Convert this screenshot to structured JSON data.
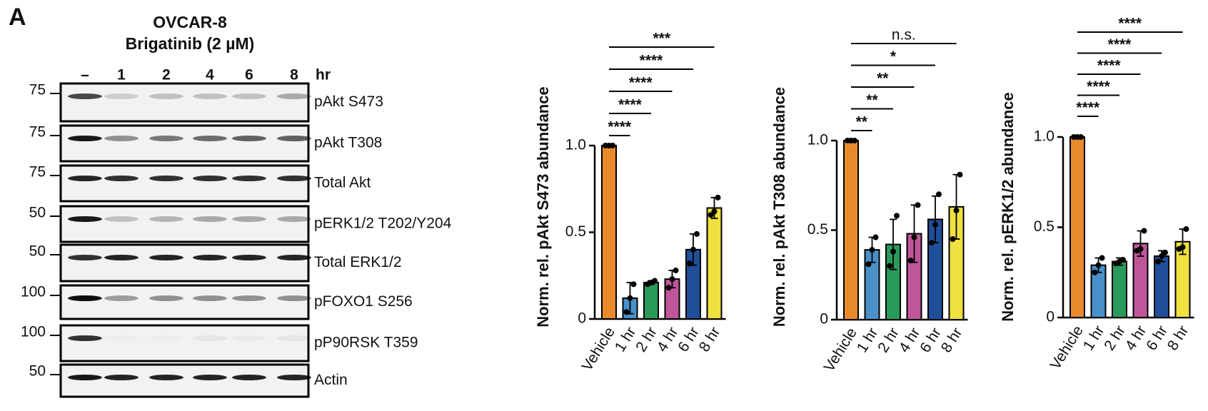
{
  "panel_label": "A",
  "blot": {
    "title": [
      "OVCAR-8",
      "Brigatinib (2 µM)"
    ],
    "lanes": [
      "–",
      "1",
      "2",
      "4",
      "6",
      "8"
    ],
    "lane_unit": "hr",
    "rows": [
      {
        "mw": "75",
        "label": "pAkt S473",
        "bands": [
          0.7,
          0.15,
          0.2,
          0.2,
          0.2,
          0.3
        ]
      },
      {
        "mw": "75",
        "label": "pAkt T308",
        "bands": [
          0.9,
          0.4,
          0.5,
          0.55,
          0.6,
          0.6
        ]
      },
      {
        "mw": "75",
        "label": "Total Akt",
        "bands": [
          0.85,
          0.8,
          0.8,
          0.8,
          0.8,
          0.8
        ]
      },
      {
        "mw": "50",
        "label": "pERK1/2 T202/Y204",
        "bands": [
          0.9,
          0.2,
          0.25,
          0.3,
          0.3,
          0.3
        ]
      },
      {
        "mw": "50",
        "label": "Total ERK1/2",
        "bands": [
          0.8,
          0.85,
          0.85,
          0.85,
          0.85,
          0.85
        ]
      },
      {
        "mw": "100",
        "label": "pFOXO1 S256",
        "bands": [
          0.95,
          0.35,
          0.4,
          0.4,
          0.4,
          0.4
        ]
      },
      {
        "mw": "100",
        "label": "pP90RSK T359",
        "bands": [
          0.8,
          0.02,
          0.02,
          0.05,
          0.03,
          0.05
        ]
      },
      {
        "mw": "50",
        "label": "Actin",
        "bands": [
          0.9,
          0.85,
          0.85,
          0.85,
          0.85,
          0.85
        ]
      }
    ]
  },
  "chart_data": [
    {
      "type": "bar",
      "ylabel": "Norm. rel. pAkt S473 abundance",
      "categories": [
        "Vehicle",
        "1 hr",
        "2 hr",
        "4 hr",
        "6 hr",
        "8 hr"
      ],
      "colors": [
        "#e8892b",
        "#4a90c8",
        "#2a9a5a",
        "#c0569a",
        "#1f4f99",
        "#f0e040"
      ],
      "values": [
        1,
        0.12,
        0.21,
        0.23,
        0.4,
        0.64
      ],
      "errors": [
        0,
        0.09,
        0.01,
        0.05,
        0.09,
        0.06
      ],
      "points": [
        [
          1,
          1,
          1
        ],
        [
          0.04,
          0.12,
          0.2
        ],
        [
          0.2,
          0.21,
          0.22
        ],
        [
          0.18,
          0.23,
          0.28
        ],
        [
          0.32,
          0.4,
          0.49
        ],
        [
          0.6,
          0.62,
          0.7
        ]
      ],
      "ylim": [
        0,
        1
      ],
      "yticks": [
        0,
        0.5,
        {
          "value": 1,
          "label": "1.0"
        }
      ],
      "significance": [
        {
          "label": "****",
          "from": 0,
          "to": 1
        },
        {
          "label": "****",
          "from": 0,
          "to": 2
        },
        {
          "label": "****",
          "from": 0,
          "to": 3
        },
        {
          "label": "****",
          "from": 0,
          "to": 4
        },
        {
          "label": "***",
          "from": 0,
          "to": 5
        }
      ]
    },
    {
      "type": "bar",
      "ylabel": "Norm. rel. pAkt  T308 abundance",
      "categories": [
        "Vehicle",
        "1 hr",
        "2 hr",
        "4 hr",
        "6 hr",
        "8 hr"
      ],
      "colors": [
        "#e8892b",
        "#4a90c8",
        "#2a9a5a",
        "#c0569a",
        "#1f4f99",
        "#f0e040"
      ],
      "values": [
        1,
        0.39,
        0.42,
        0.48,
        0.56,
        0.63
      ],
      "errors": [
        0,
        0.07,
        0.14,
        0.16,
        0.13,
        0.18
      ],
      "points": [
        [
          1,
          1,
          1
        ],
        [
          0.31,
          0.39,
          0.46
        ],
        [
          0.3,
          0.38,
          0.58
        ],
        [
          0.33,
          0.46,
          0.64
        ],
        [
          0.43,
          0.53,
          0.7
        ],
        [
          0.45,
          0.61,
          0.81
        ]
      ],
      "ylim": [
        0,
        1
      ],
      "yticks": [
        0,
        0.5,
        {
          "value": 1,
          "label": "1.0"
        }
      ],
      "significance": [
        {
          "label": "**",
          "from": 0,
          "to": 1
        },
        {
          "label": "**",
          "from": 0,
          "to": 2
        },
        {
          "label": "**",
          "from": 0,
          "to": 3
        },
        {
          "label": "*",
          "from": 0,
          "to": 4
        },
        {
          "label": "n.s.",
          "from": 0,
          "to": 5
        }
      ]
    },
    {
      "type": "bar",
      "ylabel": "Norm. rel. pERK1/2 abundance",
      "categories": [
        "Vehicle",
        "1 hr",
        "2 hr",
        "4 hr",
        "6 hr",
        "8 hr"
      ],
      "colors": [
        "#e8892b",
        "#4a90c8",
        "#2a9a5a",
        "#c0569a",
        "#1f4f99",
        "#f0e040"
      ],
      "values": [
        1,
        0.29,
        0.31,
        0.41,
        0.34,
        0.42
      ],
      "errors": [
        0,
        0.04,
        0.02,
        0.07,
        0.03,
        0.07
      ],
      "points": [
        [
          1,
          1,
          1
        ],
        [
          0.25,
          0.29,
          0.33
        ],
        [
          0.3,
          0.31,
          0.32
        ],
        [
          0.37,
          0.38,
          0.48
        ],
        [
          0.31,
          0.34,
          0.36
        ],
        [
          0.38,
          0.39,
          0.49
        ]
      ],
      "ylim": [
        0,
        1
      ],
      "yticks": [
        0,
        0.5,
        {
          "value": 1,
          "label": "1.0"
        }
      ],
      "significance": [
        {
          "label": "****",
          "from": 0,
          "to": 1
        },
        {
          "label": "****",
          "from": 0,
          "to": 2
        },
        {
          "label": "****",
          "from": 0,
          "to": 3
        },
        {
          "label": "****",
          "from": 0,
          "to": 4
        },
        {
          "label": "****",
          "from": 0,
          "to": 5
        }
      ]
    }
  ]
}
